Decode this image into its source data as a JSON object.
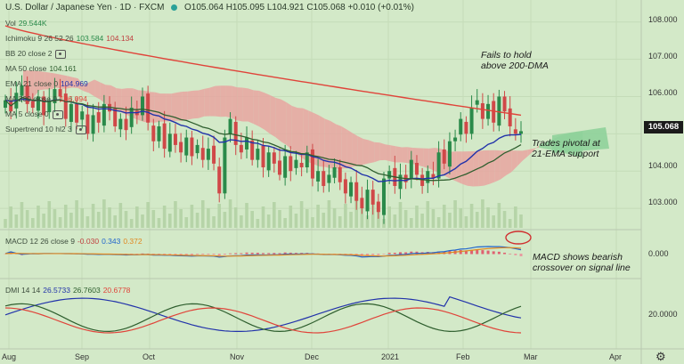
{
  "header": {
    "symbol": "U.S. Dollar / Japanese Yen · 1D · FXCM",
    "ohlc": "O105.064 H105.095 L104.921 C105.068 +0.010 (+0.01%)"
  },
  "legend": {
    "vol": {
      "label": "Vol",
      "value": "29.544K"
    },
    "ichimoku": {
      "label": "Ichimoku 9 26 52 26",
      "v1": "103.584",
      "v2": "104.134"
    },
    "bb": {
      "label": "BB 20 close 2"
    },
    "ma50": {
      "label": "MA 50 close",
      "value": "104.161"
    },
    "ema21": {
      "label": "EMA 21 close 0",
      "value": "104.969"
    },
    "ma200": {
      "label": "MA 200 close 0",
      "value": "106.094"
    },
    "ma5": {
      "label": "MA 5 close 0"
    },
    "supertrend": {
      "label": "Supertrend 10 hl2 3"
    }
  },
  "price_axis": {
    "labels": [
      "108.000",
      "107.000",
      "106.000",
      "105.000",
      "104.000",
      "103.000"
    ],
    "current": "105.068"
  },
  "macd": {
    "label": "MACD 12 26 close 9",
    "v1": "-0.030",
    "v2": "0.343",
    "v3": "0.372",
    "axis": "0.000"
  },
  "dmi": {
    "label": "DMI 14 14",
    "v1": "26.5733",
    "v2": "26.7603",
    "v3": "20.6778",
    "axis": "20.0000"
  },
  "time_axis": [
    "Aug",
    "Sep",
    "Oct",
    "Nov",
    "Dec",
    "2021",
    "Feb",
    "Mar",
    "Apr"
  ],
  "annotations": {
    "fail1": "Fails to hold",
    "fail2": "above 200-DMA",
    "pivot1": "Trades pivotal at",
    "pivot2": "21-EMA support",
    "macd1": "MACD shows bearish",
    "macd2": "crossover on signal line"
  },
  "colors": {
    "bg": "#d3e9c8",
    "up": "#2a8a4a",
    "down": "#d04848",
    "ma200": "#e0443a",
    "ema21": "#2233aa",
    "ma50": "#2e5e2e",
    "cloud_red": "#e8a5a0",
    "cloud_green": "#8fd19a"
  },
  "chart_data": {
    "type": "candlestick",
    "x_labels": [
      "Aug",
      "Sep",
      "Oct",
      "Nov",
      "Dec",
      "2021",
      "Feb",
      "Mar",
      "Apr"
    ],
    "ylim": [
      102.5,
      108.4
    ],
    "close_series": [
      105.9,
      105.6,
      106.1,
      106.3,
      105.8,
      105.7,
      106.0,
      105.5,
      105.9,
      106.2,
      106.0,
      105.4,
      105.8,
      105.3,
      105.6,
      105.0,
      105.5,
      105.3,
      105.8,
      105.6,
      105.2,
      105.4,
      105.1,
      105.7,
      105.5,
      106.0,
      105.3,
      104.8,
      105.2,
      104.6,
      105.0,
      104.7,
      104.5,
      104.9,
      104.4,
      104.7,
      104.3,
      104.6,
      104.2,
      103.4,
      104.9,
      105.4,
      104.7,
      104.5,
      104.9,
      104.3,
      104.6,
      104.1,
      104.5,
      104.2,
      103.9,
      104.4,
      104.0,
      104.3,
      104.1,
      104.5,
      103.8,
      104.0,
      103.6,
      103.9,
      104.1,
      103.7,
      103.4,
      103.7,
      103.2,
      103.0,
      103.5,
      103.1,
      102.9,
      103.8,
      104.0,
      103.6,
      103.9,
      103.7,
      104.3,
      103.9,
      103.6,
      104.0,
      103.8,
      104.5,
      104.2,
      104.8,
      104.9,
      105.4,
      105.0,
      105.7,
      105.9,
      105.4,
      105.8,
      105.3,
      106.0,
      105.6,
      105.2,
      105.0,
      105.07
    ],
    "ma200": {
      "start": 107.9,
      "end": 105.5
    },
    "ema21_last": 104.969,
    "ma50_last": 104.161
  }
}
